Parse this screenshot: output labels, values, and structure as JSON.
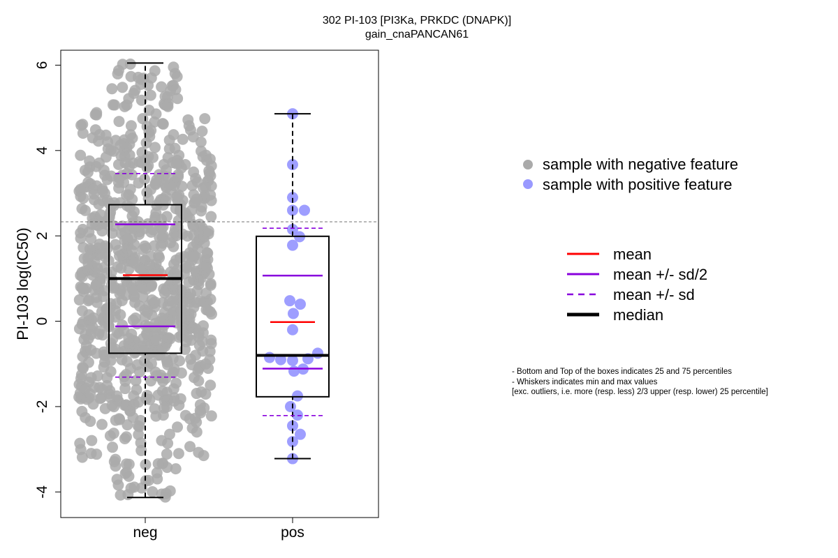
{
  "chart_data": {
    "type": "scatter",
    "title": "302 PI-103 [PI3Ka, PRKDC (DNAPK)]",
    "subtitle": "gain_cnaPANCAN61",
    "ylabel": "PI-103 log(IC50)",
    "xlabel": "",
    "categories": [
      "neg",
      "pos"
    ],
    "ylim": [
      -4.6,
      6.35
    ],
    "yticks": [
      -4,
      -2,
      0,
      2,
      4,
      6
    ],
    "threshold_line": 2.33,
    "grid": false,
    "legend_position": "right",
    "groups": [
      {
        "name": "neg",
        "n_points": 900,
        "color": "#aaaaaa",
        "min": -4.13,
        "q1": -0.75,
        "median": 1.0,
        "q3": 2.73,
        "max": 6.05,
        "mean": 1.08,
        "mean_minus_half_sd": -0.12,
        "mean_plus_half_sd": 2.27,
        "mean_minus_sd": -1.31,
        "mean_plus_sd": 3.46
      },
      {
        "name": "pos",
        "color": "#9999ff",
        "min": -3.22,
        "q1": -1.77,
        "median": -0.8,
        "q3": 1.99,
        "max": 4.86,
        "mean": -0.02,
        "mean_minus_half_sd": -1.11,
        "mean_plus_half_sd": 1.07,
        "mean_minus_sd": -2.21,
        "mean_plus_sd": 2.18,
        "points": [
          {
            "x": 0.0,
            "y": 4.86
          },
          {
            "x": 0.0,
            "y": 3.67
          },
          {
            "x": 0.0,
            "y": 2.9
          },
          {
            "x": 0.0,
            "y": 2.6
          },
          {
            "x": 0.17,
            "y": 2.6
          },
          {
            "x": 0.0,
            "y": 2.15
          },
          {
            "x": 0.1,
            "y": 1.98
          },
          {
            "x": 0.0,
            "y": 1.78
          },
          {
            "x": -0.04,
            "y": 0.48
          },
          {
            "x": 0.11,
            "y": 0.4
          },
          {
            "x": 0.01,
            "y": 0.18
          },
          {
            "x": 0.0,
            "y": -0.2
          },
          {
            "x": 0.36,
            "y": -0.75
          },
          {
            "x": -0.33,
            "y": -0.85
          },
          {
            "x": -0.17,
            "y": -0.9
          },
          {
            "x": 0.0,
            "y": -0.92
          },
          {
            "x": 0.22,
            "y": -0.88
          },
          {
            "x": 0.02,
            "y": -1.17
          },
          {
            "x": 0.15,
            "y": -1.12
          },
          {
            "x": 0.07,
            "y": -1.75
          },
          {
            "x": -0.03,
            "y": -2.0
          },
          {
            "x": 0.07,
            "y": -2.2
          },
          {
            "x": 0.0,
            "y": -2.45
          },
          {
            "x": 0.11,
            "y": -2.65
          },
          {
            "x": 0.0,
            "y": -2.82
          },
          {
            "x": 0.0,
            "y": -3.22
          }
        ]
      }
    ],
    "legend": {
      "points": [
        {
          "label": "sample with negative feature",
          "color": "#aaaaaa"
        },
        {
          "label": "sample with positive feature",
          "color": "#9999ff"
        }
      ],
      "lines": [
        {
          "label": "mean",
          "color": "#ff0000",
          "style": "solid"
        },
        {
          "label": "mean +/- sd/2",
          "color": "#8800dd",
          "style": "solid"
        },
        {
          "label": "mean +/- sd",
          "color": "#8800dd",
          "style": "dashed"
        },
        {
          "label": "median",
          "color": "#000000",
          "style": "solid-thick"
        }
      ]
    },
    "notes": [
      "- Bottom and Top of the boxes indicates 25 and 75 percentiles",
      "- Whiskers indicates min and max values",
      "[exc. outliers, i.e. more (resp. less) 2/3 upper (resp. lower) 25 percentile]"
    ]
  }
}
